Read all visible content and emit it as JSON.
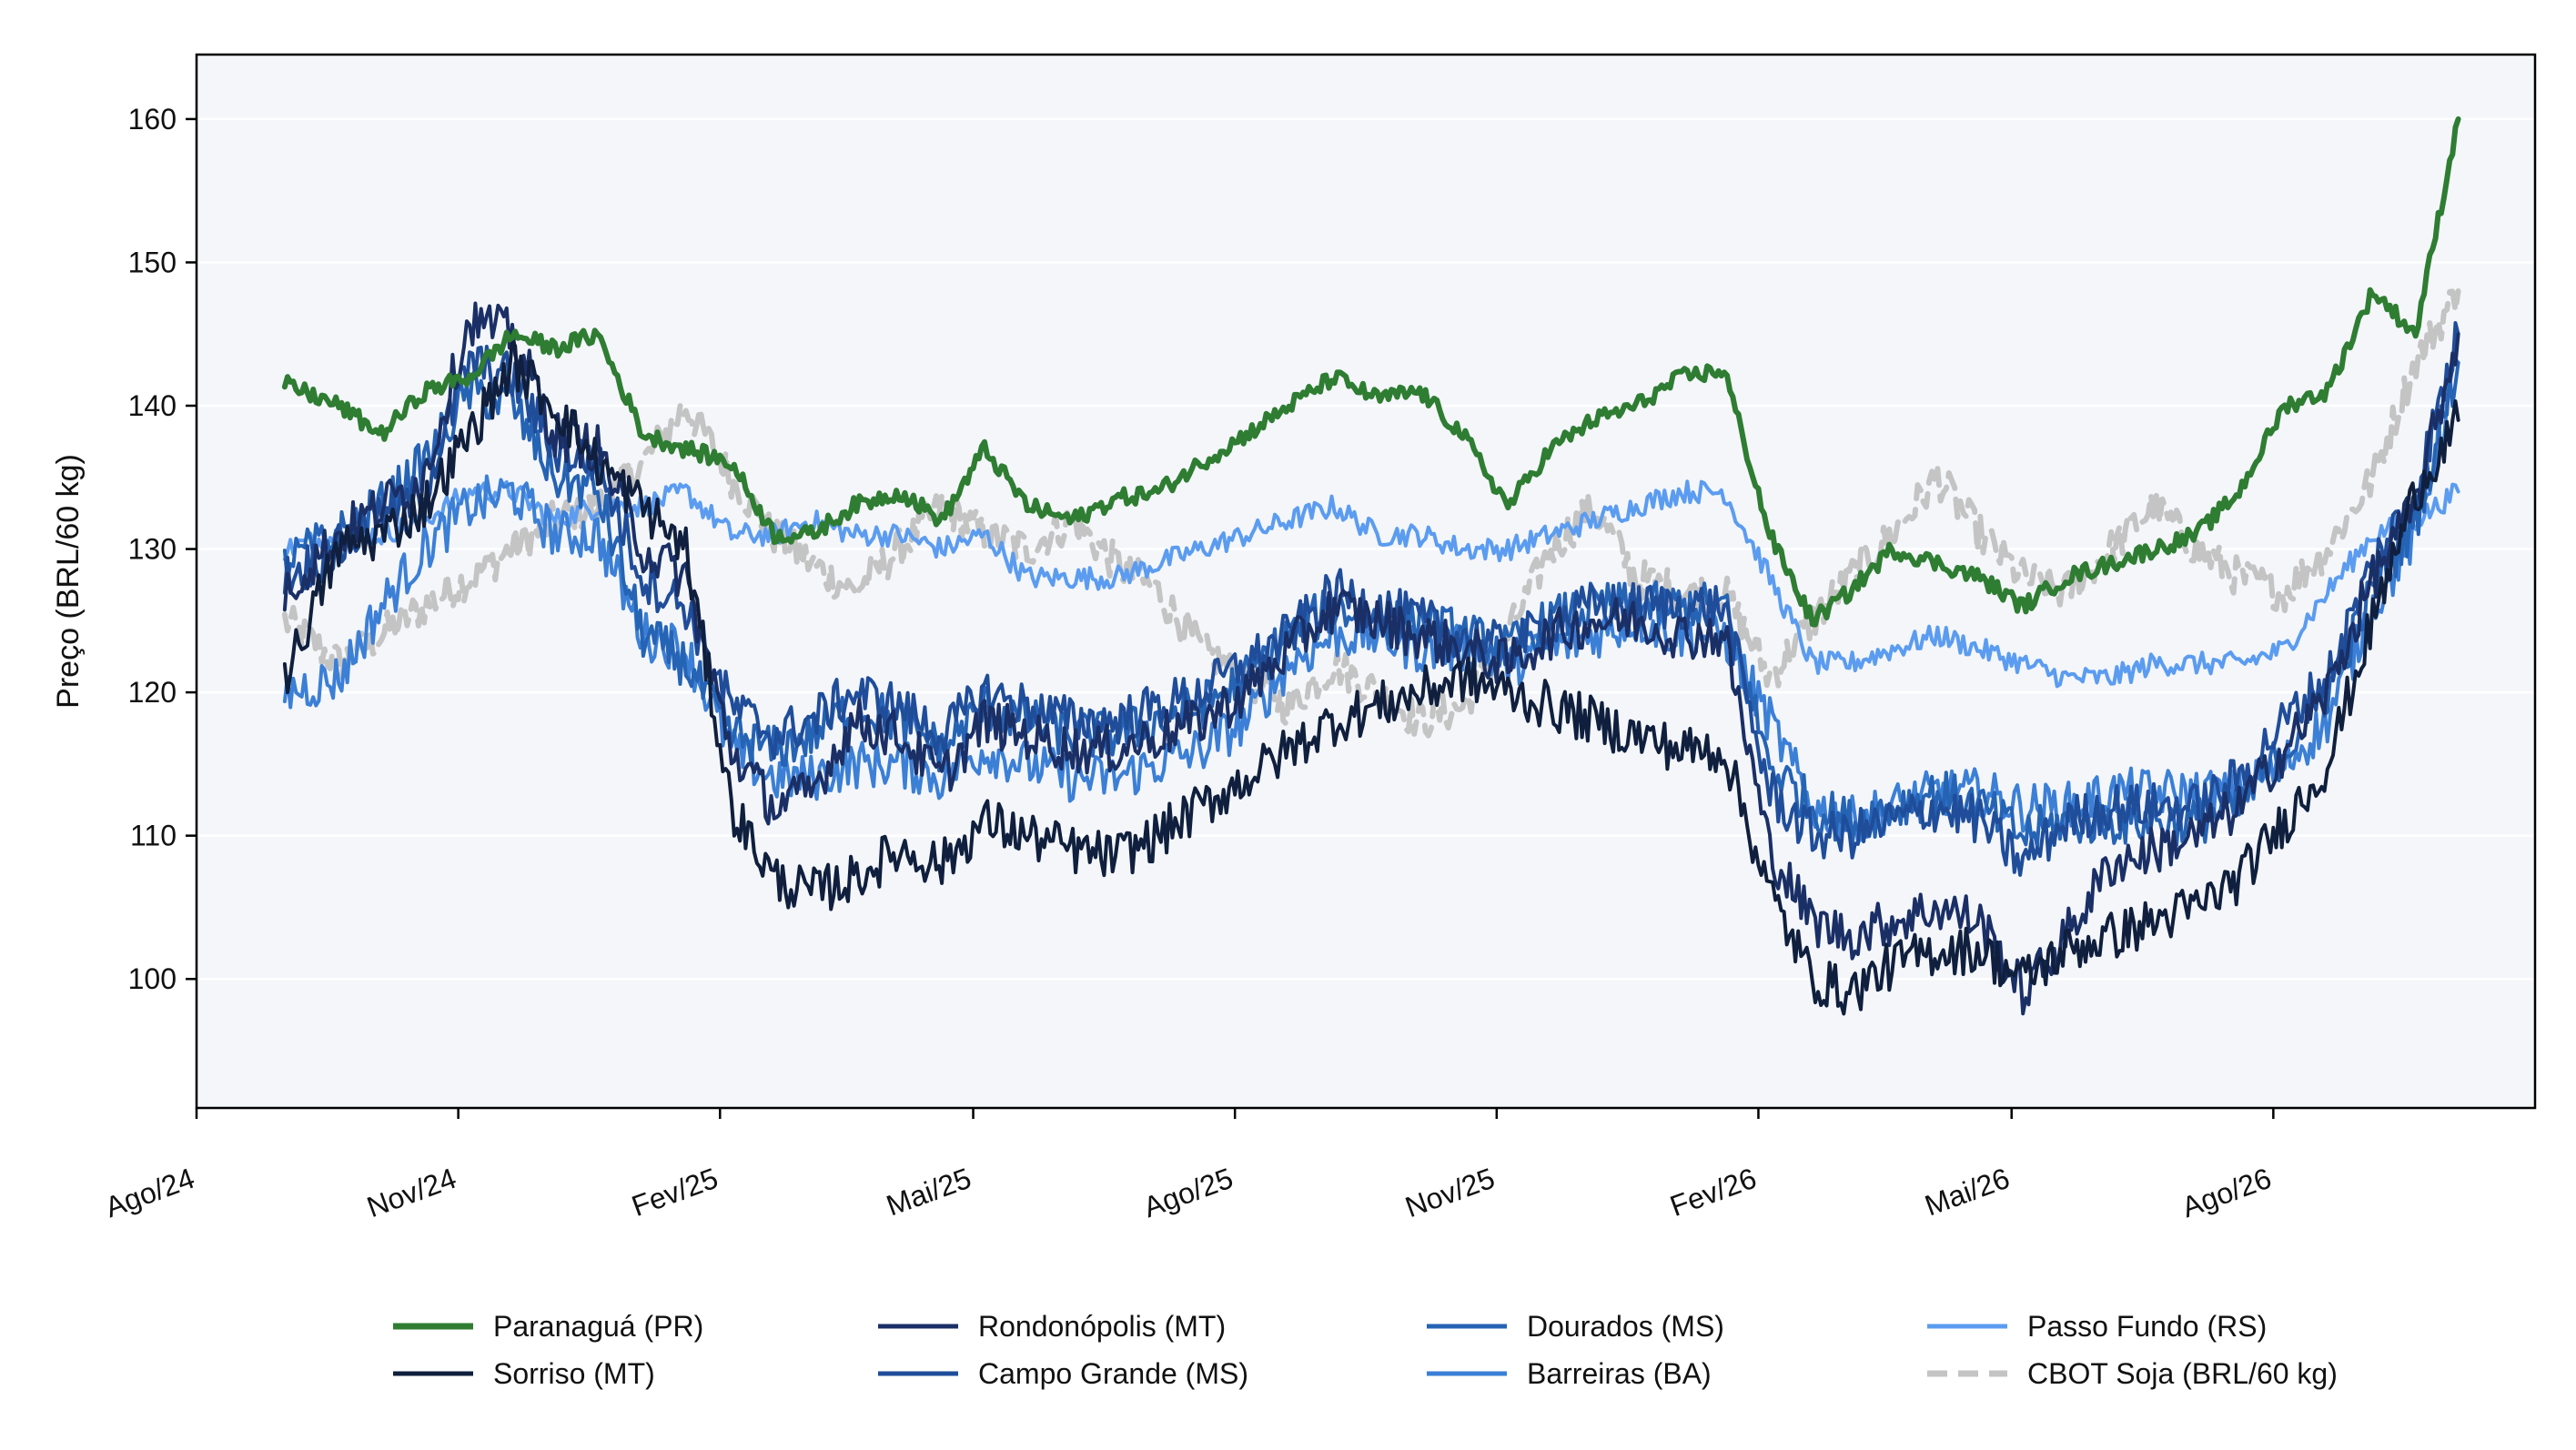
{
  "chart_data": {
    "type": "line",
    "title": "",
    "xlabel": "",
    "ylabel": "Preço (BRL/60 kg)",
    "x_ticks": [
      "Ago/24",
      "Nov/24",
      "Fev/25",
      "Mai/25",
      "Ago/25",
      "Nov/25",
      "Fev/26",
      "Mai/26",
      "Ago/26"
    ],
    "y_ticks": [
      100,
      110,
      120,
      130,
      140,
      150,
      160
    ],
    "xlim": [
      "2024-08-01",
      "2026-11-01"
    ],
    "ylim": [
      91,
      164.5
    ],
    "grid": "horizontal",
    "legend_placement": "bottom-center",
    "series": [
      {
        "name": "Paranaguá (PR)",
        "color": "#2e7d32",
        "dash": "solid",
        "width": "thick",
        "x": [
          "2024-09-01",
          "2024-09-20",
          "2024-10-05",
          "2024-10-20",
          "2024-11-05",
          "2024-11-20",
          "2024-12-05",
          "2024-12-20",
          "2025-01-05",
          "2025-01-20",
          "2025-02-05",
          "2025-02-20",
          "2025-03-05",
          "2025-03-20",
          "2025-04-05",
          "2025-04-20",
          "2025-05-05",
          "2025-05-20",
          "2025-06-05",
          "2025-06-20",
          "2025-07-05",
          "2025-07-20",
          "2025-08-05",
          "2025-08-20",
          "2025-09-05",
          "2025-09-20",
          "2025-10-05",
          "2025-10-20",
          "2025-11-05",
          "2025-11-20",
          "2025-12-05",
          "2025-12-20",
          "2026-01-05",
          "2026-01-20",
          "2026-02-05",
          "2026-02-20",
          "2026-03-05",
          "2026-03-20",
          "2026-04-05",
          "2026-04-20",
          "2026-05-05",
          "2026-05-20",
          "2026-06-05",
          "2026-06-20",
          "2026-07-05",
          "2026-07-20",
          "2026-08-05",
          "2026-08-20",
          "2026-09-05",
          "2026-09-20",
          "2026-10-05"
        ],
        "values": [
          141.5,
          140,
          138,
          141,
          142,
          145,
          144,
          145,
          138,
          137,
          136,
          131,
          131,
          133,
          134,
          132,
          137,
          133,
          132,
          133.5,
          134,
          136,
          138,
          140,
          142,
          140.5,
          141,
          138,
          133,
          137,
          139,
          140,
          142,
          142.5,
          131,
          125,
          127,
          130,
          129,
          128,
          126,
          128,
          129,
          130,
          131,
          134,
          140,
          141,
          148,
          145,
          160
        ]
      },
      {
        "name": "Sorriso (MT)",
        "color": "#0f1f3d",
        "dash": "solid",
        "width": "normal",
        "x": [
          "2024-09-01",
          "2024-09-20",
          "2024-10-05",
          "2024-10-20",
          "2024-11-05",
          "2024-11-20",
          "2024-12-05",
          "2024-12-20",
          "2025-01-05",
          "2025-01-20",
          "2025-02-05",
          "2025-02-20",
          "2025-03-05",
          "2025-03-20",
          "2025-04-05",
          "2025-04-20",
          "2025-05-05",
          "2025-05-20",
          "2025-06-05",
          "2025-06-20",
          "2025-07-05",
          "2025-07-20",
          "2025-08-05",
          "2025-08-20",
          "2025-09-05",
          "2025-09-20",
          "2025-10-05",
          "2025-10-20",
          "2025-11-05",
          "2025-11-20",
          "2025-12-05",
          "2025-12-20",
          "2026-01-05",
          "2026-01-20",
          "2026-02-05",
          "2026-02-20",
          "2026-03-05",
          "2026-03-20",
          "2026-04-05",
          "2026-04-20",
          "2026-05-05",
          "2026-05-20",
          "2026-06-05",
          "2026-06-20",
          "2026-07-05",
          "2026-07-20",
          "2026-08-05",
          "2026-08-20",
          "2026-09-05",
          "2026-09-20",
          "2026-10-05"
        ],
        "values": [
          121,
          130,
          131,
          133,
          138,
          143,
          140,
          136,
          133,
          130,
          112,
          107,
          106,
          107,
          109,
          108,
          111,
          110,
          109,
          108.5,
          110,
          112,
          114,
          116,
          118,
          119,
          120,
          121,
          120,
          119,
          118,
          117,
          116,
          116,
          106,
          100,
          99,
          101,
          102,
          102,
          100,
          102,
          103,
          104,
          105,
          107,
          111,
          115,
          125,
          134,
          139
        ]
      },
      {
        "name": "Rondonópolis (MT)",
        "color": "#1a2f66",
        "dash": "solid",
        "width": "normal",
        "x": [
          "2024-09-01",
          "2024-09-20",
          "2024-10-05",
          "2024-10-20",
          "2024-11-05",
          "2024-11-20",
          "2024-12-05",
          "2024-12-20",
          "2025-01-05",
          "2025-01-20",
          "2025-02-05",
          "2025-02-20",
          "2025-03-05",
          "2025-03-20",
          "2025-04-05",
          "2025-04-20",
          "2025-05-05",
          "2025-05-20",
          "2025-06-05",
          "2025-06-20",
          "2025-07-05",
          "2025-07-20",
          "2025-08-05",
          "2025-08-20",
          "2025-09-05",
          "2025-09-20",
          "2025-10-05",
          "2025-10-20",
          "2025-11-05",
          "2025-11-20",
          "2025-12-05",
          "2025-12-20",
          "2026-01-05",
          "2026-01-20",
          "2026-02-05",
          "2026-02-20",
          "2026-03-05",
          "2026-03-20",
          "2026-04-05",
          "2026-04-20",
          "2026-05-05",
          "2026-05-20",
          "2026-06-05",
          "2026-06-20",
          "2026-07-05",
          "2026-07-20",
          "2026-08-05",
          "2026-08-20",
          "2026-09-05",
          "2026-09-20",
          "2026-10-05"
        ],
        "values": [
          127,
          131,
          133,
          135,
          146,
          145,
          138,
          137,
          130,
          128,
          116,
          112,
          113,
          118,
          117,
          114,
          118,
          117,
          116,
          116,
          117,
          118,
          120,
          123,
          126,
          125,
          124,
          123,
          122,
          124,
          125,
          125,
          124,
          124,
          109,
          104,
          103,
          104,
          105,
          104,
          99,
          103,
          108,
          109,
          110,
          112,
          116,
          120,
          128,
          133,
          145
        ]
      },
      {
        "name": "Campo Grande (MS)",
        "color": "#1f4d9a",
        "dash": "solid",
        "width": "normal",
        "x": [
          "2024-09-01",
          "2024-09-20",
          "2024-10-05",
          "2024-10-20",
          "2024-11-05",
          "2024-11-20",
          "2024-12-05",
          "2024-12-20",
          "2025-01-05",
          "2025-01-20",
          "2025-02-05",
          "2025-02-20",
          "2025-03-05",
          "2025-03-20",
          "2025-04-05",
          "2025-04-20",
          "2025-05-05",
          "2025-05-20",
          "2025-06-05",
          "2025-06-20",
          "2025-07-05",
          "2025-07-20",
          "2025-08-05",
          "2025-08-20",
          "2025-09-05",
          "2025-09-20",
          "2025-10-05",
          "2025-10-20",
          "2025-11-05",
          "2025-11-20",
          "2025-12-05",
          "2025-12-20",
          "2026-01-05",
          "2026-01-20",
          "2026-02-05",
          "2026-02-20",
          "2026-03-05",
          "2026-03-20",
          "2026-04-05",
          "2026-04-20",
          "2026-05-05",
          "2026-05-20",
          "2026-06-05",
          "2026-06-20",
          "2026-07-05",
          "2026-07-20",
          "2026-08-05",
          "2026-08-20",
          "2026-09-05",
          "2026-09-20",
          "2026-10-05"
        ],
        "values": [
          128,
          130,
          132,
          134,
          143,
          142,
          137,
          136,
          128,
          126,
          119,
          117,
          118,
          120,
          119,
          117,
          120,
          119,
          118,
          118,
          119,
          120,
          122,
          124,
          127,
          126,
          125,
          124,
          123,
          125,
          126,
          126,
          126,
          126,
          113,
          110,
          110,
          111,
          112,
          111,
          108,
          111,
          112,
          112,
          112,
          114,
          118,
          121,
          129,
          134,
          145
        ]
      },
      {
        "name": "Dourados (MS)",
        "color": "#2563b4",
        "dash": "solid",
        "width": "normal",
        "x": [
          "2024-09-01",
          "2024-09-20",
          "2024-10-05",
          "2024-10-20",
          "2024-11-05",
          "2024-11-20",
          "2024-12-05",
          "2024-12-20",
          "2025-01-05",
          "2025-01-20",
          "2025-02-05",
          "2025-02-20",
          "2025-03-05",
          "2025-03-20",
          "2025-04-05",
          "2025-04-20",
          "2025-05-05",
          "2025-05-20",
          "2025-06-05",
          "2025-06-20",
          "2025-07-05",
          "2025-07-20",
          "2025-08-05",
          "2025-08-20",
          "2025-09-05",
          "2025-09-20",
          "2025-10-05",
          "2025-10-20",
          "2025-11-05",
          "2025-11-20",
          "2025-12-05",
          "2025-12-20",
          "2026-01-05",
          "2026-01-20",
          "2026-02-05",
          "2026-02-20",
          "2026-03-05",
          "2026-03-20",
          "2026-04-05",
          "2026-04-20",
          "2026-05-05",
          "2026-05-20",
          "2026-06-05",
          "2026-06-20",
          "2026-07-05",
          "2026-07-20",
          "2026-08-05",
          "2026-08-20",
          "2026-09-05",
          "2026-09-20",
          "2026-10-05"
        ],
        "values": [
          129,
          131,
          133,
          136,
          141,
          140,
          135,
          134,
          124,
          122,
          117,
          116,
          117,
          119,
          118,
          116,
          119,
          118,
          117,
          117,
          118,
          119,
          121,
          124,
          126,
          125,
          125,
          124,
          123,
          125,
          126,
          126,
          126,
          126,
          115,
          112,
          111,
          112,
          113,
          112,
          110,
          111,
          111,
          111,
          111,
          112,
          116,
          120,
          127,
          132,
          143
        ]
      },
      {
        "name": "Barreiras (BA)",
        "color": "#3b7fd6",
        "dash": "solid",
        "width": "normal",
        "x": [
          "2024-09-01",
          "2024-09-20",
          "2024-10-05",
          "2024-10-20",
          "2024-11-05",
          "2024-11-20",
          "2024-12-05",
          "2024-12-20",
          "2025-01-05",
          "2025-01-20",
          "2025-02-05",
          "2025-02-20",
          "2025-03-05",
          "2025-03-20",
          "2025-04-05",
          "2025-04-20",
          "2025-05-05",
          "2025-05-20",
          "2025-06-05",
          "2025-06-20",
          "2025-07-05",
          "2025-07-20",
          "2025-08-05",
          "2025-08-20",
          "2025-09-05",
          "2025-09-20",
          "2025-10-05",
          "2025-10-20",
          "2025-11-05",
          "2025-11-20",
          "2025-12-05",
          "2025-12-20",
          "2026-01-05",
          "2026-01-20",
          "2026-02-05",
          "2026-02-20",
          "2026-03-05",
          "2026-03-20",
          "2026-04-05",
          "2026-04-20",
          "2026-05-05",
          "2026-05-20",
          "2026-06-05",
          "2026-06-20",
          "2026-07-05",
          "2026-07-20",
          "2026-08-05",
          "2026-08-20",
          "2026-09-05",
          "2026-09-20",
          "2026-10-05"
        ],
        "values": [
          120,
          121,
          126,
          130,
          133,
          134,
          131,
          131,
          124,
          123,
          116,
          114,
          114,
          115,
          115,
          114,
          116,
          115,
          114,
          114,
          115,
          116,
          118,
          122,
          124,
          124,
          123,
          123,
          122,
          123,
          124,
          125,
          124,
          124,
          118,
          112,
          111,
          112,
          113,
          113,
          112,
          112,
          113,
          113,
          113,
          113,
          115,
          118,
          126,
          131,
          143
        ]
      },
      {
        "name": "Passo Fundo (RS)",
        "color": "#5b9cf0",
        "dash": "solid",
        "width": "normal",
        "x": [
          "2024-09-01",
          "2024-09-20",
          "2024-10-05",
          "2024-10-20",
          "2024-11-05",
          "2024-11-20",
          "2024-12-05",
          "2024-12-20",
          "2025-01-05",
          "2025-01-20",
          "2025-02-05",
          "2025-02-20",
          "2025-03-05",
          "2025-03-20",
          "2025-04-05",
          "2025-04-20",
          "2025-05-05",
          "2025-05-20",
          "2025-06-05",
          "2025-06-20",
          "2025-07-05",
          "2025-07-20",
          "2025-08-05",
          "2025-08-20",
          "2025-09-05",
          "2025-09-20",
          "2025-10-05",
          "2025-10-20",
          "2025-11-05",
          "2025-11-20",
          "2025-12-05",
          "2025-12-20",
          "2026-01-05",
          "2026-01-20",
          "2026-02-05",
          "2026-02-20",
          "2026-03-05",
          "2026-03-20",
          "2026-04-05",
          "2026-04-20",
          "2026-05-05",
          "2026-05-20",
          "2026-06-05",
          "2026-06-20",
          "2026-07-05",
          "2026-07-20",
          "2026-08-05",
          "2026-08-20",
          "2026-09-05",
          "2026-09-20",
          "2026-10-05"
        ],
        "values": [
          130,
          131,
          131,
          132,
          134,
          134,
          132,
          133,
          133,
          134,
          131,
          131,
          132,
          131,
          131,
          130,
          131,
          128,
          128,
          128,
          129,
          130,
          131,
          132,
          133,
          131,
          131,
          130,
          130,
          131,
          132,
          133,
          134,
          134,
          128,
          122,
          122,
          123,
          124,
          123,
          122,
          121,
          121,
          122,
          122,
          122,
          123,
          127,
          131,
          132,
          134
        ]
      },
      {
        "name": "CBOT Soja (BRL/60 kg)",
        "color": "#c4c4c4",
        "dash": "dashed",
        "width": "thick",
        "x": [
          "2024-09-01",
          "2024-09-20",
          "2024-10-05",
          "2024-10-20",
          "2024-11-05",
          "2024-11-20",
          "2024-12-05",
          "2024-12-20",
          "2025-01-05",
          "2025-01-20",
          "2025-02-05",
          "2025-02-20",
          "2025-03-05",
          "2025-03-20",
          "2025-04-05",
          "2025-04-20",
          "2025-05-05",
          "2025-05-20",
          "2025-06-05",
          "2025-06-20",
          "2025-07-05",
          "2025-07-20",
          "2025-08-05",
          "2025-08-20",
          "2025-09-05",
          "2025-09-20",
          "2025-10-05",
          "2025-10-20",
          "2025-11-05",
          "2025-11-20",
          "2025-12-05",
          "2025-12-20",
          "2026-01-05",
          "2026-01-20",
          "2026-02-05",
          "2026-02-20",
          "2026-03-05",
          "2026-03-20",
          "2026-04-05",
          "2026-04-20",
          "2026-05-05",
          "2026-05-20",
          "2026-06-05",
          "2026-06-20",
          "2026-07-05",
          "2026-07-20",
          "2026-08-05",
          "2026-08-20",
          "2026-09-05",
          "2026-09-20",
          "2026-10-05"
        ],
        "values": [
          125,
          122,
          124,
          126,
          128,
          130,
          132,
          133,
          136,
          140,
          135,
          131,
          129,
          127,
          130,
          133,
          131,
          130,
          132,
          129,
          127,
          123,
          121,
          119,
          122,
          120,
          118,
          119,
          124,
          130,
          133,
          128,
          127,
          127,
          121,
          125,
          128,
          131,
          135,
          131,
          128,
          127,
          130,
          133,
          130,
          128,
          127,
          130,
          135,
          143,
          148
        ]
      }
    ]
  }
}
